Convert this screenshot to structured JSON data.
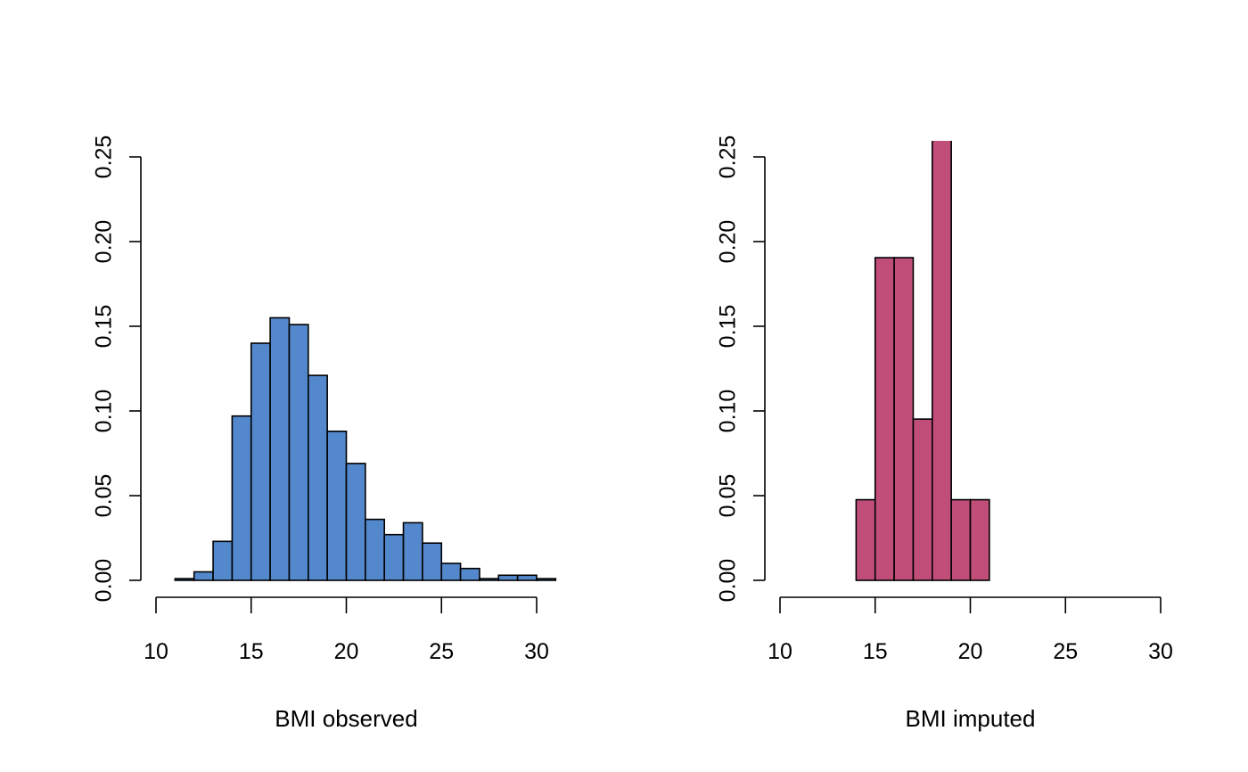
{
  "chart_data": [
    {
      "type": "bar",
      "xlabel": "BMI observed",
      "ylabel": "",
      "xlim": [
        10,
        30
      ],
      "ylim": [
        0,
        0.25
      ],
      "x_ticks": [
        "10",
        "15",
        "20",
        "25",
        "30"
      ],
      "y_ticks": [
        "0.00",
        "0.05",
        "0.10",
        "0.15",
        "0.20",
        "0.25"
      ],
      "bar_color": "#5488CC",
      "bin_width": 1,
      "bins": [
        {
          "x0": 11,
          "x1": 12,
          "density": 0.001
        },
        {
          "x0": 12,
          "x1": 13,
          "density": 0.005
        },
        {
          "x0": 13,
          "x1": 14,
          "density": 0.023
        },
        {
          "x0": 14,
          "x1": 15,
          "density": 0.097
        },
        {
          "x0": 15,
          "x1": 16,
          "density": 0.14
        },
        {
          "x0": 16,
          "x1": 17,
          "density": 0.155
        },
        {
          "x0": 17,
          "x1": 18,
          "density": 0.151
        },
        {
          "x0": 18,
          "x1": 19,
          "density": 0.121
        },
        {
          "x0": 19,
          "x1": 20,
          "density": 0.088
        },
        {
          "x0": 20,
          "x1": 21,
          "density": 0.069
        },
        {
          "x0": 21,
          "x1": 22,
          "density": 0.036
        },
        {
          "x0": 22,
          "x1": 23,
          "density": 0.027
        },
        {
          "x0": 23,
          "x1": 24,
          "density": 0.034
        },
        {
          "x0": 24,
          "x1": 25,
          "density": 0.022
        },
        {
          "x0": 25,
          "x1": 26,
          "density": 0.01
        },
        {
          "x0": 26,
          "x1": 27,
          "density": 0.007
        },
        {
          "x0": 27,
          "x1": 28,
          "density": 0.001
        },
        {
          "x0": 28,
          "x1": 29,
          "density": 0.003
        },
        {
          "x0": 29,
          "x1": 30,
          "density": 0.003
        },
        {
          "x0": 30,
          "x1": 31,
          "density": 0.001
        }
      ]
    },
    {
      "type": "bar",
      "xlabel": "BMI imputed",
      "ylabel": "",
      "xlim": [
        10,
        30
      ],
      "ylim": [
        0,
        0.25
      ],
      "x_ticks": [
        "10",
        "15",
        "20",
        "25",
        "30"
      ],
      "y_ticks": [
        "0.00",
        "0.05",
        "0.10",
        "0.15",
        "0.20",
        "0.25"
      ],
      "bar_color": "#C04E79",
      "bin_width": 1,
      "bins": [
        {
          "x0": 14,
          "x1": 15,
          "density": 0.0476
        },
        {
          "x0": 15,
          "x1": 16,
          "density": 0.1905
        },
        {
          "x0": 16,
          "x1": 17,
          "density": 0.1905
        },
        {
          "x0": 17,
          "x1": 18,
          "density": 0.0952
        },
        {
          "x0": 18,
          "x1": 19,
          "density": 0.2857
        },
        {
          "x0": 19,
          "x1": 20,
          "density": 0.0476
        },
        {
          "x0": 20,
          "x1": 21,
          "density": 0.0476
        }
      ]
    }
  ]
}
